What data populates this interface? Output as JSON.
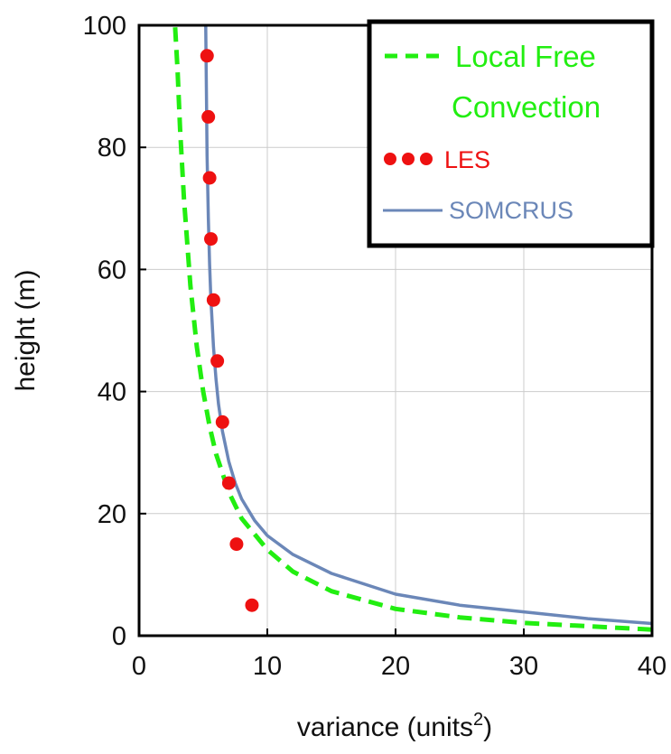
{
  "chart_data": {
    "type": "line",
    "xlabel": {
      "text": "variance (units",
      "sup": "2",
      "suffix": ")"
    },
    "ylabel": "height (m)",
    "xlim": [
      0,
      40
    ],
    "ylim": [
      0,
      100
    ],
    "xticks": [
      "0",
      "10",
      "20",
      "30",
      "40"
    ],
    "yticks": [
      "0",
      "20",
      "40",
      "60",
      "80",
      "100"
    ],
    "grid": true,
    "legend_position": "top-right",
    "legend": {
      "lfc_line1": "Local Free",
      "lfc_line2": "Convection",
      "les": "LES",
      "somcrus": "SOMCRUS"
    },
    "series": [
      {
        "name": "Local Free Convection",
        "style": "dashed",
        "color": "#22ee11",
        "x": [
          40,
          30,
          25,
          20,
          15,
          12,
          10,
          8,
          7,
          6,
          5.5,
          5,
          4.5,
          4,
          3.5,
          3.2,
          3.0,
          2.8,
          2.6
        ],
        "y": [
          1.0,
          2.1,
          3.0,
          4.4,
          7.3,
          10.5,
          14.1,
          19.2,
          23.5,
          29.8,
          34.3,
          40.0,
          47.4,
          57.4,
          71.6,
          83.0,
          92.7,
          100.0,
          100.0
        ]
      },
      {
        "name": "LES",
        "style": "points",
        "color": "#ee1111",
        "x": [
          8.8,
          7.6,
          7.0,
          6.5,
          6.1,
          5.8,
          5.6,
          5.5,
          5.4,
          5.3
        ],
        "y": [
          5,
          15,
          25,
          35,
          45,
          55,
          65,
          75,
          85,
          95
        ]
      },
      {
        "name": "SOMCRUS",
        "style": "solid",
        "color": "#6b87b8",
        "x": [
          40,
          35,
          30,
          25,
          20,
          15,
          12,
          10,
          9,
          8,
          7.5,
          7,
          6.5,
          6.2,
          6.0,
          5.8,
          5.6,
          5.5,
          5.4,
          5.3,
          5.2
        ],
        "y": [
          2.0,
          2.8,
          3.9,
          5.0,
          6.8,
          10.2,
          13.3,
          16.4,
          18.9,
          22.4,
          25.0,
          28.5,
          33.5,
          37.9,
          42.0,
          47.3,
          55.2,
          60.8,
          68.4,
          78.6,
          100.0
        ]
      }
    ]
  }
}
